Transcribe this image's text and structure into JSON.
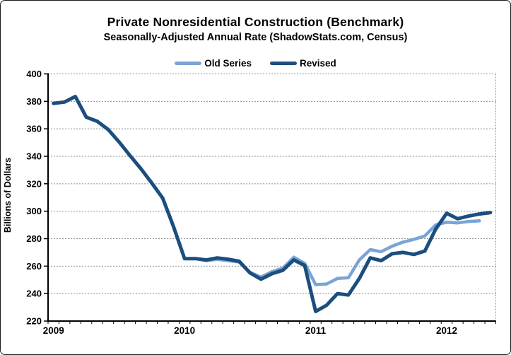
{
  "header": {
    "title": "Private Nonresidential Construction (Benchmark)",
    "subtitle": "Seasonally-Adjusted Annual Rate (ShadowStats.com, Census)"
  },
  "legend": {
    "old_series_label": "Old Series",
    "revised_label": "Revised"
  },
  "colors": {
    "old_series": "#7AA4D6",
    "revised": "#1B4E7E",
    "gridline": "#8f8f8f",
    "axis": "#000000",
    "background": "#ffffff"
  },
  "chart_data": {
    "type": "line",
    "title": "Private Nonresidential Construction (Benchmark)",
    "subtitle": "Seasonally-Adjusted Annual Rate (ShadowStats.com, Census)",
    "xlabel": "",
    "ylabel": "Billions of Dollars",
    "ylim": [
      220,
      400
    ],
    "ytick_step": 20,
    "ytick_labels": [
      "220",
      "240",
      "260",
      "280",
      "300",
      "320",
      "340",
      "360",
      "380",
      "400"
    ],
    "grid": "horizontal-dashed",
    "legend_position": "top-center",
    "x_year_labels": [
      "2009",
      "2010",
      "2011",
      "2012"
    ],
    "x_year_month_index": [
      0,
      12,
      24,
      36
    ],
    "months": [
      "2009-01",
      "2009-02",
      "2009-03",
      "2009-04",
      "2009-05",
      "2009-06",
      "2009-07",
      "2009-08",
      "2009-09",
      "2009-10",
      "2009-11",
      "2009-12",
      "2010-01",
      "2010-02",
      "2010-03",
      "2010-04",
      "2010-05",
      "2010-06",
      "2010-07",
      "2010-08",
      "2010-09",
      "2010-10",
      "2010-11",
      "2010-12",
      "2011-01",
      "2011-02",
      "2011-03",
      "2011-04",
      "2011-05",
      "2011-06",
      "2011-07",
      "2011-08",
      "2011-09",
      "2011-10",
      "2011-11",
      "2011-12",
      "2012-01",
      "2012-02",
      "2012-03",
      "2012-04",
      "2012-05"
    ],
    "series": [
      {
        "name": "Old Series",
        "color": "#7AA4D6",
        "stroke_width": 4.5,
        "values": [
          378.5,
          379.5,
          383.5,
          368.5,
          365.5,
          359.5,
          350.5,
          340.5,
          331,
          320.5,
          309.5,
          288.5,
          265.5,
          265.5,
          264,
          265,
          264,
          263,
          255.5,
          252,
          256,
          258.5,
          266.5,
          262,
          246.5,
          247,
          251,
          251.5,
          264.5,
          272,
          270.5,
          274.5,
          277.5,
          279.5,
          282,
          290,
          292,
          291.5,
          292.5,
          293,
          null
        ]
      },
      {
        "name": "Revised",
        "color": "#1B4E7E",
        "stroke_width": 5,
        "values": [
          378.5,
          379.5,
          383.5,
          368.5,
          365.5,
          359.5,
          350.5,
          340.5,
          331,
          320.5,
          309.5,
          288.5,
          265.5,
          265.5,
          264.5,
          266,
          265,
          263.5,
          255,
          250.5,
          254.5,
          257,
          264.5,
          260.5,
          227,
          231.5,
          240,
          239,
          251,
          266,
          264,
          269,
          270,
          268.5,
          271,
          287,
          298.5,
          294.5,
          296.5,
          298,
          299
        ]
      }
    ]
  }
}
